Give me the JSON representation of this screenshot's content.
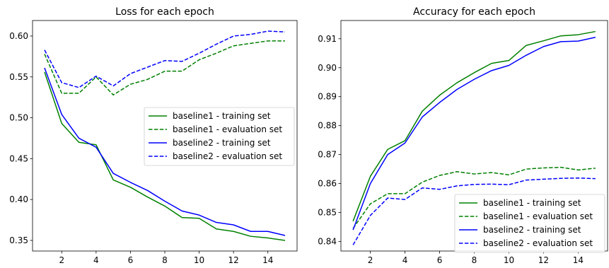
{
  "chart_data": [
    {
      "type": "line",
      "title": "Loss for each epoch",
      "xlabel": "",
      "ylabel": "",
      "xlim": [
        0.3,
        15.7
      ],
      "ylim": [
        0.337,
        0.619
      ],
      "xticks": [
        2,
        4,
        6,
        8,
        10,
        12,
        14
      ],
      "yticks": [
        0.35,
        0.4,
        0.45,
        0.5,
        0.55,
        0.6
      ],
      "ytick_labels": [
        "0.35",
        "0.40",
        "0.45",
        "0.50",
        "0.55",
        "0.60"
      ],
      "grid": false,
      "legend_position": "center-right",
      "x": [
        1,
        2,
        3,
        4,
        5,
        6,
        7,
        8,
        9,
        10,
        11,
        12,
        13,
        14,
        15
      ],
      "series": [
        {
          "name": "baseline1 - training set",
          "color": "#008000",
          "dash": "solid",
          "values": [
            0.556,
            0.493,
            0.47,
            0.467,
            0.424,
            0.415,
            0.403,
            0.392,
            0.378,
            0.377,
            0.364,
            0.361,
            0.355,
            0.353,
            0.35
          ]
        },
        {
          "name": "baseline1 - evaluation set",
          "color": "#008000",
          "dash": "dashed",
          "values": [
            0.578,
            0.53,
            0.53,
            0.55,
            0.528,
            0.541,
            0.547,
            0.557,
            0.557,
            0.571,
            0.579,
            0.588,
            0.591,
            0.594,
            0.594
          ]
        },
        {
          "name": "baseline2 - training set",
          "color": "#0000ff",
          "dash": "solid",
          "values": [
            0.561,
            0.504,
            0.475,
            0.464,
            0.432,
            0.421,
            0.411,
            0.398,
            0.386,
            0.381,
            0.372,
            0.369,
            0.361,
            0.361,
            0.356
          ]
        },
        {
          "name": "baseline2 - evaluation set",
          "color": "#0000ff",
          "dash": "dashed",
          "values": [
            0.583,
            0.543,
            0.537,
            0.551,
            0.539,
            0.554,
            0.562,
            0.57,
            0.569,
            0.579,
            0.59,
            0.6,
            0.602,
            0.606,
            0.605
          ]
        }
      ]
    },
    {
      "type": "line",
      "title": "Accuracy for each epoch",
      "xlabel": "",
      "ylabel": "",
      "xlim": [
        0.3,
        15.7
      ],
      "ylim": [
        0.8367,
        0.9163
      ],
      "xticks": [
        2,
        4,
        6,
        8,
        10,
        12,
        14
      ],
      "yticks": [
        0.84,
        0.85,
        0.86,
        0.87,
        0.88,
        0.89,
        0.9,
        0.91
      ],
      "ytick_labels": [
        "0.84",
        "0.85",
        "0.86",
        "0.87",
        "0.88",
        "0.89",
        "0.90",
        "0.91"
      ],
      "grid": false,
      "legend_position": "lower-right",
      "x": [
        1,
        2,
        3,
        4,
        5,
        6,
        7,
        8,
        9,
        10,
        11,
        12,
        13,
        14,
        15
      ],
      "series": [
        {
          "name": "baseline1 - training set",
          "color": "#008000",
          "dash": "solid",
          "values": [
            0.847,
            0.8625,
            0.8718,
            0.8748,
            0.885,
            0.8905,
            0.8948,
            0.8983,
            0.9015,
            0.9025,
            0.9077,
            0.9093,
            0.911,
            0.9114,
            0.9125
          ]
        },
        {
          "name": "baseline1 - evaluation set",
          "color": "#008000",
          "dash": "dashed",
          "values": [
            0.8445,
            0.853,
            0.8565,
            0.8565,
            0.8605,
            0.8628,
            0.8641,
            0.8633,
            0.8638,
            0.863,
            0.865,
            0.8654,
            0.8656,
            0.8647,
            0.8653
          ]
        },
        {
          "name": "baseline2 - training set",
          "color": "#0000ff",
          "dash": "solid",
          "values": [
            0.844,
            0.86,
            0.87,
            0.874,
            0.883,
            0.888,
            0.8925,
            0.896,
            0.899,
            0.9008,
            0.9043,
            0.9073,
            0.909,
            0.9092,
            0.9105
          ]
        },
        {
          "name": "baseline2 - evaluation set",
          "color": "#0000ff",
          "dash": "dashed",
          "values": [
            0.8388,
            0.849,
            0.855,
            0.8545,
            0.8585,
            0.858,
            0.8592,
            0.8597,
            0.8598,
            0.8596,
            0.8612,
            0.8615,
            0.8618,
            0.8619,
            0.8617
          ]
        }
      ]
    }
  ]
}
